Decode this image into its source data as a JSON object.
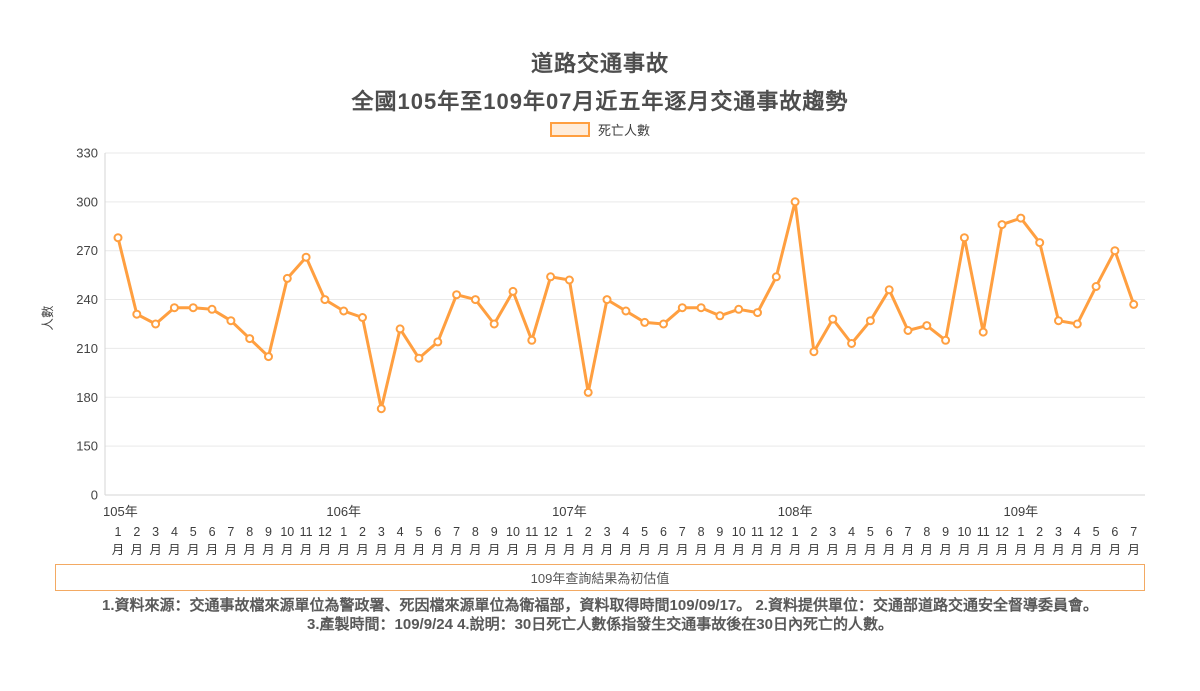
{
  "title": "道路交通事故",
  "subtitle": "全國105年至109年07月近五年逐月交通事故趨勢",
  "legend": {
    "label": "死亡人數"
  },
  "colors": {
    "line": "#FF9F40",
    "line_fill_light": "#FFECD9",
    "grid": "#E9E9E9",
    "axis": "#D5D5D5",
    "tick_text": "#444444",
    "title_text": "#4d4d4d",
    "footer_text": "#595959",
    "notice_border": "#F3AA63"
  },
  "notice": "109年查詢結果為初估值",
  "footer": {
    "line1": "1.資料來源：交通事故檔來源單位為警政署、死因檔來源單位為衛福部，資料取得時間109/09/17。 2.資料提供單位：交通部道路交通安全督導委員會。",
    "line2": "3.產製時間：109/9/24 4.說明：30日死亡人數係指發生交通事故後在30日內死亡的人數。"
  },
  "chart_data": {
    "type": "line",
    "title": "道路交通事故",
    "subtitle": "全國105年至109年07月近五年逐月交通事故趨勢",
    "series_name": "死亡人數",
    "ylabel": "人數",
    "month_suffix": "月",
    "yticks": [
      0,
      150,
      180,
      210,
      240,
      270,
      300,
      330
    ],
    "grid": true,
    "legend_position": "top",
    "years": [
      {
        "label": "105年",
        "months": [
          1,
          2,
          3,
          4,
          5,
          6,
          7,
          8,
          9,
          10,
          11,
          12
        ],
        "values": [
          278,
          231,
          225,
          235,
          235,
          234,
          227,
          216,
          205,
          253,
          266,
          240
        ]
      },
      {
        "label": "106年",
        "months": [
          1,
          2,
          3,
          4,
          5,
          6,
          7,
          8,
          9,
          10,
          11,
          12
        ],
        "values": [
          233,
          229,
          173,
          222,
          204,
          214,
          243,
          240,
          225,
          245,
          215,
          254
        ]
      },
      {
        "label": "107年",
        "months": [
          1,
          2,
          3,
          4,
          5,
          6,
          7,
          8,
          9,
          10,
          11,
          12
        ],
        "values": [
          252,
          183,
          240,
          233,
          226,
          225,
          235,
          235,
          230,
          234,
          232,
          254
        ]
      },
      {
        "label": "108年",
        "months": [
          1,
          2,
          3,
          4,
          5,
          6,
          7,
          8,
          9,
          10,
          11,
          12
        ],
        "values": [
          300,
          208,
          228,
          213,
          227,
          246,
          221,
          224,
          215,
          278,
          220,
          286
        ]
      },
      {
        "label": "109年",
        "months": [
          1,
          2,
          3,
          4,
          5,
          6,
          7
        ],
        "values": [
          290,
          275,
          227,
          225,
          248,
          270,
          237
        ]
      }
    ]
  }
}
